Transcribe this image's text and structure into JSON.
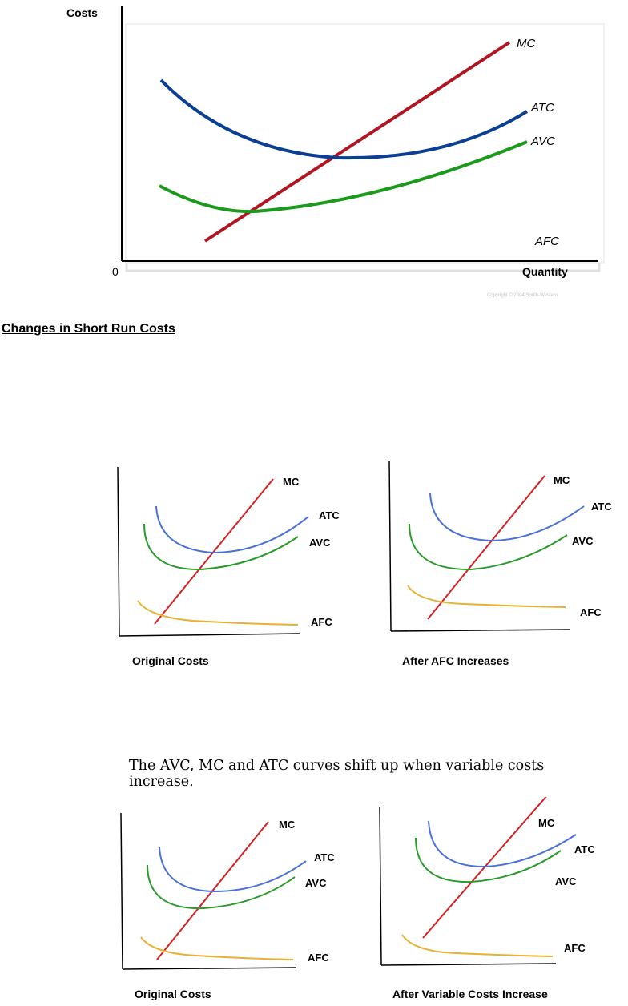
{
  "top_chart": {
    "y_axis_label": "Costs",
    "x_axis_label": "Quantity",
    "origin_label": "0",
    "copyright": "Copyright © 2004 South-Western",
    "curve_labels": {
      "mc": "MC",
      "atc": "ATC",
      "avc": "AVC",
      "afc": "AFC"
    }
  },
  "section_heading": "Changes in Short Run Costs",
  "row1": {
    "left": {
      "caption": "Original Costs"
    },
    "right": {
      "caption": "After AFC Increases"
    }
  },
  "row2_note": "The AVC, MC and ATC curves shift up when variable costs increase.",
  "row2": {
    "left": {
      "caption": "Original Costs"
    },
    "right": {
      "caption": "After Variable Costs Increase"
    }
  },
  "small_curve_labels": {
    "mc": "MC",
    "atc": "ATC",
    "avc": "AVC",
    "afc": "AFC"
  },
  "colors": {
    "top_mc": "#b01622",
    "top_atc": "#0a3f93",
    "top_avc": "#1b9a1b",
    "small_mc": "#d42020",
    "small_atc": "#4a72d6",
    "small_avc": "#2a9a2a",
    "small_afc": "#e5b233"
  },
  "chart_data": [
    {
      "type": "line",
      "title": "",
      "xlabel": "Quantity",
      "ylabel": "Costs",
      "series": [
        {
          "name": "MC",
          "shape": "upward-sloping line"
        },
        {
          "name": "ATC",
          "shape": "U-shaped, minimum where MC crosses"
        },
        {
          "name": "AVC",
          "shape": "U-shaped, minimum where MC crosses, below ATC"
        },
        {
          "name": "AFC"
        }
      ]
    },
    {
      "type": "line",
      "caption": "Original Costs",
      "series": [
        {
          "name": "MC"
        },
        {
          "name": "ATC"
        },
        {
          "name": "AVC"
        },
        {
          "name": "AFC"
        }
      ]
    },
    {
      "type": "line",
      "caption": "After AFC Increases",
      "series": [
        {
          "name": "MC"
        },
        {
          "name": "ATC"
        },
        {
          "name": "AVC"
        },
        {
          "name": "AFC"
        }
      ]
    },
    {
      "type": "line",
      "caption": "Original Costs",
      "series": [
        {
          "name": "MC"
        },
        {
          "name": "ATC"
        },
        {
          "name": "AVC"
        },
        {
          "name": "AFC"
        }
      ]
    },
    {
      "type": "line",
      "caption": "After Variable Costs Increase",
      "series": [
        {
          "name": "MC"
        },
        {
          "name": "ATC"
        },
        {
          "name": "AVC"
        },
        {
          "name": "AFC"
        }
      ]
    }
  ]
}
